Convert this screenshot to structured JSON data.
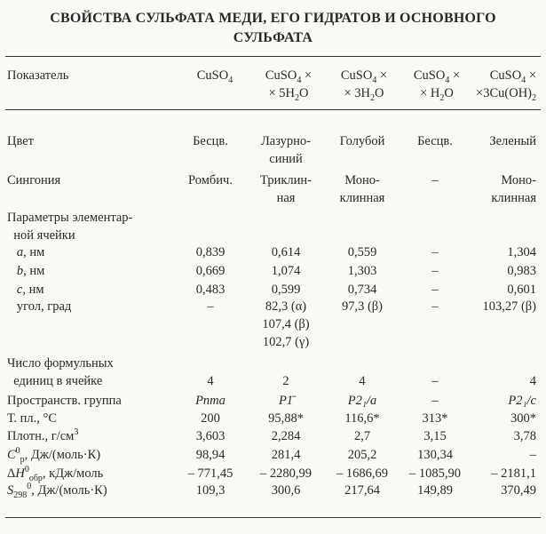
{
  "title": [
    "СВОЙСТВА СУЛЬФАТА МЕДИ, ЕГО ГИДРАТОВ И ОСНОВНОГО",
    "СУЛЬФАТА"
  ],
  "header": {
    "label": "Показатель",
    "columns": [
      [
        [
          {
            "t": "CuSO"
          },
          {
            "t": "4",
            "s": "sub"
          }
        ]
      ],
      [
        [
          {
            "t": "CuSO"
          },
          {
            "t": "4",
            "s": "sub"
          },
          {
            "t": " ×"
          }
        ],
        [
          {
            "t": "× 5H"
          },
          {
            "t": "2",
            "s": "sub"
          },
          {
            "t": "O"
          }
        ]
      ],
      [
        [
          {
            "t": "CuSO"
          },
          {
            "t": "4",
            "s": "sub"
          },
          {
            "t": " ×"
          }
        ],
        [
          {
            "t": "× 3H"
          },
          {
            "t": "2",
            "s": "sub"
          },
          {
            "t": "O"
          }
        ]
      ],
      [
        [
          {
            "t": "CuSO"
          },
          {
            "t": "4",
            "s": "sub"
          },
          {
            "t": " ×"
          }
        ],
        [
          {
            "t": "× H"
          },
          {
            "t": "2",
            "s": "sub"
          },
          {
            "t": "O"
          }
        ]
      ],
      [
        [
          {
            "t": "CuSO"
          },
          {
            "t": "4",
            "s": "sub"
          },
          {
            "t": " ×"
          }
        ],
        [
          {
            "t": "×3Cu(OH)"
          },
          {
            "t": "2",
            "s": "sub"
          }
        ]
      ]
    ]
  },
  "rows": [
    {
      "label": [
        [
          {
            "t": "Цвет"
          }
        ]
      ],
      "values": [
        [
          "Бесцв."
        ],
        [
          "Лазурно-",
          "синий"
        ],
        [
          "Голубой"
        ],
        [
          "Бесцв."
        ],
        [
          "Зеленый"
        ]
      ]
    },
    {
      "label": [
        [
          {
            "t": "Сингония"
          }
        ]
      ],
      "values": [
        [
          "Ромбич."
        ],
        [
          "Триклин-",
          "ная"
        ],
        [
          "Моно-",
          "клинная"
        ],
        [
          "–"
        ],
        [
          "Моно-",
          "клинная"
        ]
      ]
    },
    {
      "label": [
        [
          {
            "t": "Параметры элементар-"
          }
        ],
        [
          {
            "t": "  ной ячейки"
          }
        ]
      ],
      "values": [
        [],
        [],
        [],
        [],
        []
      ]
    },
    {
      "label": [
        [
          {
            "t": "   "
          },
          {
            "t": "a",
            "s": "it"
          },
          {
            "t": ", нм"
          }
        ]
      ],
      "values": [
        [
          "0,839"
        ],
        [
          "0,614"
        ],
        [
          "0,559"
        ],
        [
          "–"
        ],
        [
          "1,304"
        ]
      ]
    },
    {
      "label": [
        [
          {
            "t": "   "
          },
          {
            "t": "b",
            "s": "it"
          },
          {
            "t": ", нм"
          }
        ]
      ],
      "values": [
        [
          "0,669"
        ],
        [
          "1,074"
        ],
        [
          "1,303"
        ],
        [
          "–"
        ],
        [
          "0,983"
        ]
      ]
    },
    {
      "label": [
        [
          {
            "t": "   "
          },
          {
            "t": "c",
            "s": "it"
          },
          {
            "t": ", нм"
          }
        ]
      ],
      "values": [
        [
          "0,483"
        ],
        [
          "0,599"
        ],
        [
          "0,734"
        ],
        [
          "–"
        ],
        [
          "0,601"
        ]
      ]
    },
    {
      "label": [
        [
          {
            "t": "   угол, град"
          }
        ]
      ],
      "values": [
        [
          "–"
        ],
        [
          "82,3 (α)",
          "107,4 (β)",
          "102,7 (γ)"
        ],
        [
          "97,3 (β)"
        ],
        [
          "–"
        ],
        [
          "103,27 (β)"
        ]
      ]
    },
    {
      "label": [
        [
          {
            "t": "Число формульных"
          }
        ],
        [
          {
            "t": "  единиц в ячейке"
          }
        ]
      ],
      "values": [
        [],
        [],
        [],
        [],
        []
      ],
      "values2": [
        [
          "4"
        ],
        [
          "2"
        ],
        [
          "4"
        ],
        [
          "–"
        ],
        [
          "4"
        ]
      ]
    },
    {
      "label": [
        [
          {
            "t": "Пространств. группа"
          }
        ]
      ],
      "values": [
        [
          "Pnma"
        ],
        [
          "P1̄"
        ],
        [
          "P2₁/a"
        ],
        [
          "–"
        ],
        [
          "P2₁/c"
        ]
      ],
      "italic": true
    },
    {
      "label": [
        [
          {
            "t": "Т. пл., °С"
          }
        ]
      ],
      "values": [
        [
          "200"
        ],
        [
          "95,88*"
        ],
        [
          "116,6*"
        ],
        [
          "313*"
        ],
        [
          "300*"
        ]
      ]
    },
    {
      "label": [
        [
          {
            "t": "Плотн., г/см"
          },
          {
            "t": "3",
            "s": "sup"
          }
        ]
      ],
      "values": [
        [
          "3,603"
        ],
        [
          "2,284"
        ],
        [
          "2,7"
        ],
        [
          "3,15"
        ],
        [
          "3,78"
        ]
      ]
    },
    {
      "label": [
        [
          {
            "t": "C",
            "s": "it"
          },
          {
            "t": "0",
            "s": "sup"
          },
          {
            "t": "p",
            "s": "sub"
          },
          {
            "t": ", Дж/(моль·К)"
          }
        ]
      ],
      "values": [
        [
          "98,94"
        ],
        [
          "281,4"
        ],
        [
          "205,2"
        ],
        [
          "130,34"
        ],
        [
          "–"
        ]
      ]
    },
    {
      "label": [
        [
          {
            "t": "Δ"
          },
          {
            "t": "H",
            "s": "it"
          },
          {
            "t": "0",
            "s": "sup"
          },
          {
            "t": "обр",
            "s": "sub"
          },
          {
            "t": ", кДж/моль"
          }
        ]
      ],
      "values": [
        [
          "– 771,45"
        ],
        [
          "– 2280,99"
        ],
        [
          "– 1686,69"
        ],
        [
          "– 1085,90"
        ],
        [
          "– 2181,1"
        ]
      ]
    },
    {
      "label": [
        [
          {
            "t": "S",
            "s": "it"
          },
          {
            "t": "298",
            "s": "sub"
          },
          {
            "t": "0",
            "s": "sup"
          },
          {
            "t": ", Дж/(моль·К)"
          }
        ]
      ],
      "values": [
        [
          "109,3"
        ],
        [
          "300,6"
        ],
        [
          "217,64"
        ],
        [
          "149,89"
        ],
        [
          "370,49"
        ]
      ]
    }
  ]
}
